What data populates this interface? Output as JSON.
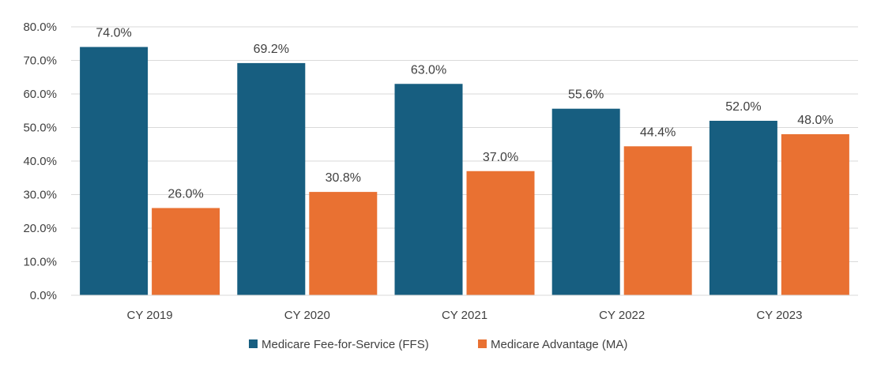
{
  "chart_data": {
    "type": "bar",
    "title": "",
    "xlabel": "",
    "ylabel": "",
    "categories": [
      "CY 2019",
      "CY 2020",
      "CY 2021",
      "CY 2022",
      "CY 2023"
    ],
    "series": [
      {
        "name": "Medicare Fee-for-Service (FFS)",
        "color": "#175E80",
        "values": [
          74.0,
          69.2,
          63.0,
          55.6,
          52.0
        ],
        "labels": [
          "74.0%",
          "69.2%",
          "63.0%",
          "55.6%",
          "52.0%"
        ]
      },
      {
        "name": "Medicare Advantage (MA)",
        "color": "#E97132",
        "values": [
          26.0,
          30.8,
          37.0,
          44.4,
          48.0
        ],
        "labels": [
          "26.0%",
          "30.8%",
          "37.0%",
          "44.4%",
          "48.0%"
        ]
      }
    ],
    "ylim": [
      0,
      80
    ],
    "yticks": [
      0,
      10,
      20,
      30,
      40,
      50,
      60,
      70,
      80
    ],
    "ytick_labels": [
      "0.0%",
      "10.0%",
      "20.0%",
      "30.0%",
      "40.0%",
      "50.0%",
      "60.0%",
      "70.0%",
      "80.0%"
    ],
    "grid": true,
    "gridline_color": "#D9D9D9",
    "legend_position": "bottom"
  }
}
